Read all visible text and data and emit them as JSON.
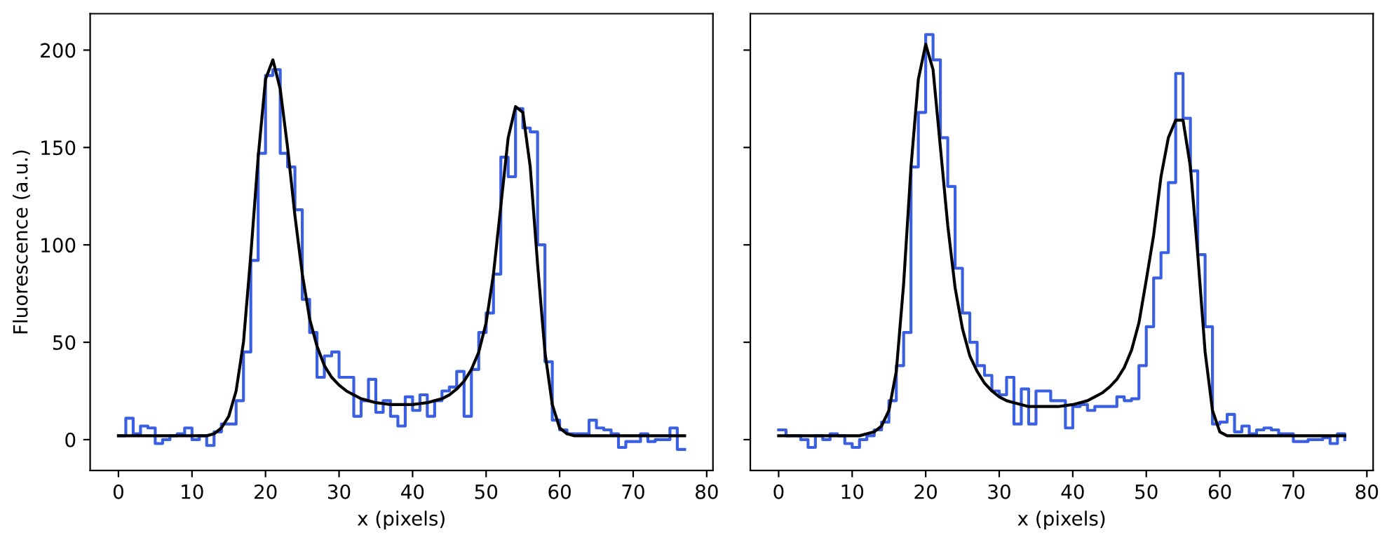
{
  "chart_data": [
    {
      "type": "step",
      "xlabel": "x (pixels)",
      "ylabel": "Fluorescence (a.u.)",
      "x": [
        0,
        1,
        2,
        3,
        4,
        5,
        6,
        7,
        8,
        9,
        10,
        11,
        12,
        13,
        14,
        15,
        16,
        17,
        18,
        19,
        20,
        21,
        22,
        23,
        24,
        25,
        26,
        27,
        28,
        29,
        30,
        31,
        32,
        33,
        34,
        35,
        36,
        37,
        38,
        39,
        40,
        41,
        42,
        43,
        44,
        45,
        46,
        47,
        48,
        49,
        50,
        51,
        52,
        53,
        54,
        55,
        56,
        57,
        58,
        59,
        60,
        61,
        62,
        63,
        64,
        65,
        66,
        67,
        68,
        69,
        70,
        71,
        72,
        73,
        74,
        75,
        76,
        77
      ],
      "series": [
        {
          "color": "#3a5fe0",
          "values": [
            2,
            11,
            3,
            7,
            6,
            -2,
            0,
            2,
            3,
            6,
            0,
            2,
            -3,
            4,
            8,
            8,
            20,
            45,
            92,
            147,
            187,
            190,
            147,
            140,
            118,
            72,
            55,
            32,
            43,
            45,
            32,
            32,
            12,
            20,
            31,
            14,
            20,
            12,
            7,
            22,
            15,
            23,
            12,
            20,
            25,
            27,
            35,
            12,
            36,
            55,
            65,
            85,
            145,
            135,
            170,
            160,
            158,
            100,
            40,
            10,
            5,
            3,
            3,
            3,
            10,
            6,
            5,
            3,
            -4,
            -1,
            -1,
            3,
            -1,
            0,
            0,
            6,
            -5,
            -5
          ]
        },
        {
          "type": "line",
          "color": "#000000",
          "values": [
            2,
            2,
            2,
            2,
            2,
            2,
            2,
            2,
            2,
            2,
            2,
            2,
            2,
            3,
            6,
            12,
            25,
            50,
            95,
            145,
            185,
            195,
            180,
            150,
            115,
            85,
            62,
            48,
            38,
            32,
            28,
            25,
            23,
            21,
            20,
            19,
            18.5,
            18,
            18,
            18,
            18,
            18.5,
            19,
            20,
            21,
            23,
            26,
            30,
            36,
            45,
            60,
            85,
            120,
            155,
            171,
            168,
            140,
            90,
            45,
            18,
            6,
            3,
            2,
            2,
            2,
            2,
            2,
            2,
            2,
            2,
            2,
            2,
            2,
            2,
            2,
            2,
            2,
            2
          ]
        }
      ],
      "xlim": [
        -3.85,
        80.85
      ],
      "xticks": [
        0,
        10,
        20,
        30,
        40,
        50,
        60,
        70,
        80
      ],
      "ylim": [
        -15.8,
        218.7
      ],
      "yticks": [
        0,
        50,
        100,
        150,
        200
      ]
    },
    {
      "type": "step",
      "xlabel": "x (pixels)",
      "tick_labels": "x",
      "x": [
        0,
        1,
        2,
        3,
        4,
        5,
        6,
        7,
        8,
        9,
        10,
        11,
        12,
        13,
        14,
        15,
        16,
        17,
        18,
        19,
        20,
        21,
        22,
        23,
        24,
        25,
        26,
        27,
        28,
        29,
        30,
        31,
        32,
        33,
        34,
        35,
        36,
        37,
        38,
        39,
        40,
        41,
        42,
        43,
        44,
        45,
        46,
        47,
        48,
        49,
        50,
        51,
        52,
        53,
        54,
        55,
        56,
        57,
        58,
        59,
        60,
        61,
        62,
        63,
        64,
        65,
        66,
        67,
        68,
        69,
        70,
        71,
        72,
        73,
        74,
        75,
        76,
        77
      ],
      "series": [
        {
          "color": "#3a5fe0",
          "values": [
            5,
            2,
            2,
            0,
            -4,
            2,
            0,
            3,
            2,
            -2,
            -4,
            0,
            2,
            5,
            9,
            20,
            38,
            55,
            140,
            168,
            208,
            195,
            155,
            130,
            88,
            65,
            50,
            38,
            33,
            25,
            23,
            32,
            8,
            26,
            8,
            25,
            25,
            20,
            20,
            6,
            17,
            18,
            15,
            17,
            17,
            17,
            22,
            20,
            21,
            38,
            58,
            83,
            96,
            132,
            188,
            165,
            138,
            95,
            58,
            8,
            9,
            13,
            4,
            7,
            3,
            5,
            6,
            5,
            3,
            3,
            -1,
            -1,
            0,
            0,
            1,
            -2,
            3,
            0
          ]
        },
        {
          "type": "line",
          "color": "#000000",
          "values": [
            2,
            2,
            2,
            2,
            2,
            2,
            2,
            2,
            2,
            2,
            2,
            2,
            3,
            4,
            7,
            15,
            35,
            80,
            140,
            185,
            203,
            190,
            150,
            110,
            78,
            57,
            43,
            35,
            29,
            25,
            22,
            20,
            19,
            18,
            17,
            17,
            17,
            17,
            17,
            17.5,
            18,
            19,
            20,
            22,
            24,
            27,
            31,
            37,
            46,
            60,
            82,
            105,
            135,
            155,
            164,
            164,
            140,
            95,
            45,
            15,
            4,
            2,
            2,
            2,
            2,
            2,
            2,
            2,
            2,
            2,
            2,
            2,
            2,
            2,
            2,
            2,
            2,
            2
          ]
        }
      ],
      "xlim": [
        -3.85,
        80.85
      ],
      "xticks": [
        0,
        10,
        20,
        30,
        40,
        50,
        60,
        70,
        80
      ],
      "ylim": [
        -15.8,
        218.7
      ],
      "yticks": [
        0,
        50,
        100,
        150,
        200
      ]
    }
  ]
}
